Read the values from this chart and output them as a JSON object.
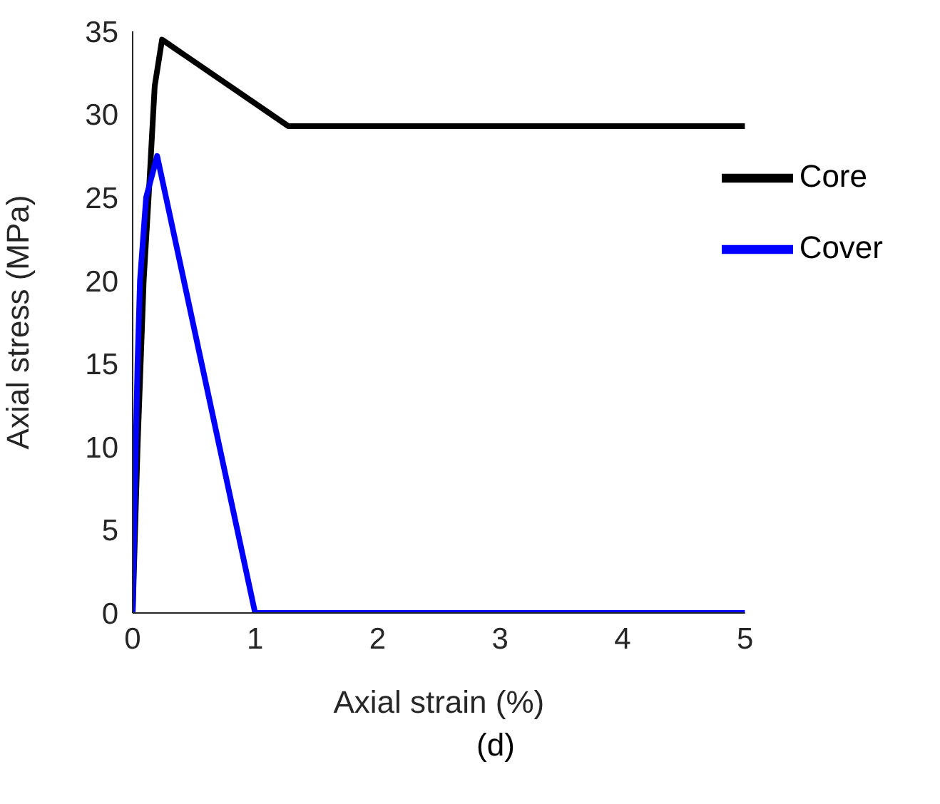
{
  "chart_data": {
    "type": "line",
    "xlabel": "Axial strain (%)",
    "ylabel": "Axial stress (MPa)",
    "annotations": [
      "(d)"
    ],
    "xlim": [
      0,
      5
    ],
    "xticks": [
      0,
      1,
      2,
      3,
      4,
      5
    ],
    "ylim": [
      0,
      35
    ],
    "yticks": [
      0,
      5,
      10,
      15,
      20,
      25,
      30,
      35
    ],
    "legend": "top right",
    "marker": "none",
    "line_style": "solid",
    "series": [
      {
        "name": "Core",
        "color": "#000000",
        "x": [
          0,
          0.02,
          0.04,
          0.09,
          0.13,
          0.18,
          0.24,
          1.27,
          5
        ],
        "values": [
          0,
          5,
          10,
          20,
          25,
          31.7,
          34.5,
          29.3,
          29.3
        ]
      },
      {
        "name": "Cover",
        "color": "#0000ff",
        "x": [
          0,
          0.02,
          0.04,
          0.06,
          0.11,
          0.2,
          1.0,
          5
        ],
        "values": [
          0,
          8,
          15,
          20,
          25,
          27.5,
          0,
          0
        ]
      }
    ]
  }
}
